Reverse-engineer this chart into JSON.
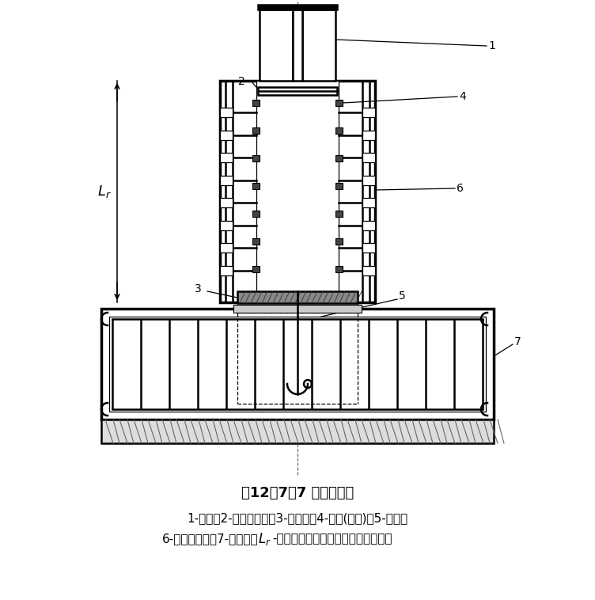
{
  "title": "图12．7．7 外包式柱脚",
  "caption_line1": "1-钢柱；2-水平加劲肋；3-柱底板；4-栓钉(可选)；5-锚栓；",
  "caption_line2": "6-外包混凝土；7-基础梁；Lr-外包混凝土顶部箍筋至柱底板的距离",
  "bg_color": "#ffffff",
  "line_color": "#000000",
  "title_fontsize": 13,
  "caption_fontsize": 11,
  "label_fontsize": 10
}
